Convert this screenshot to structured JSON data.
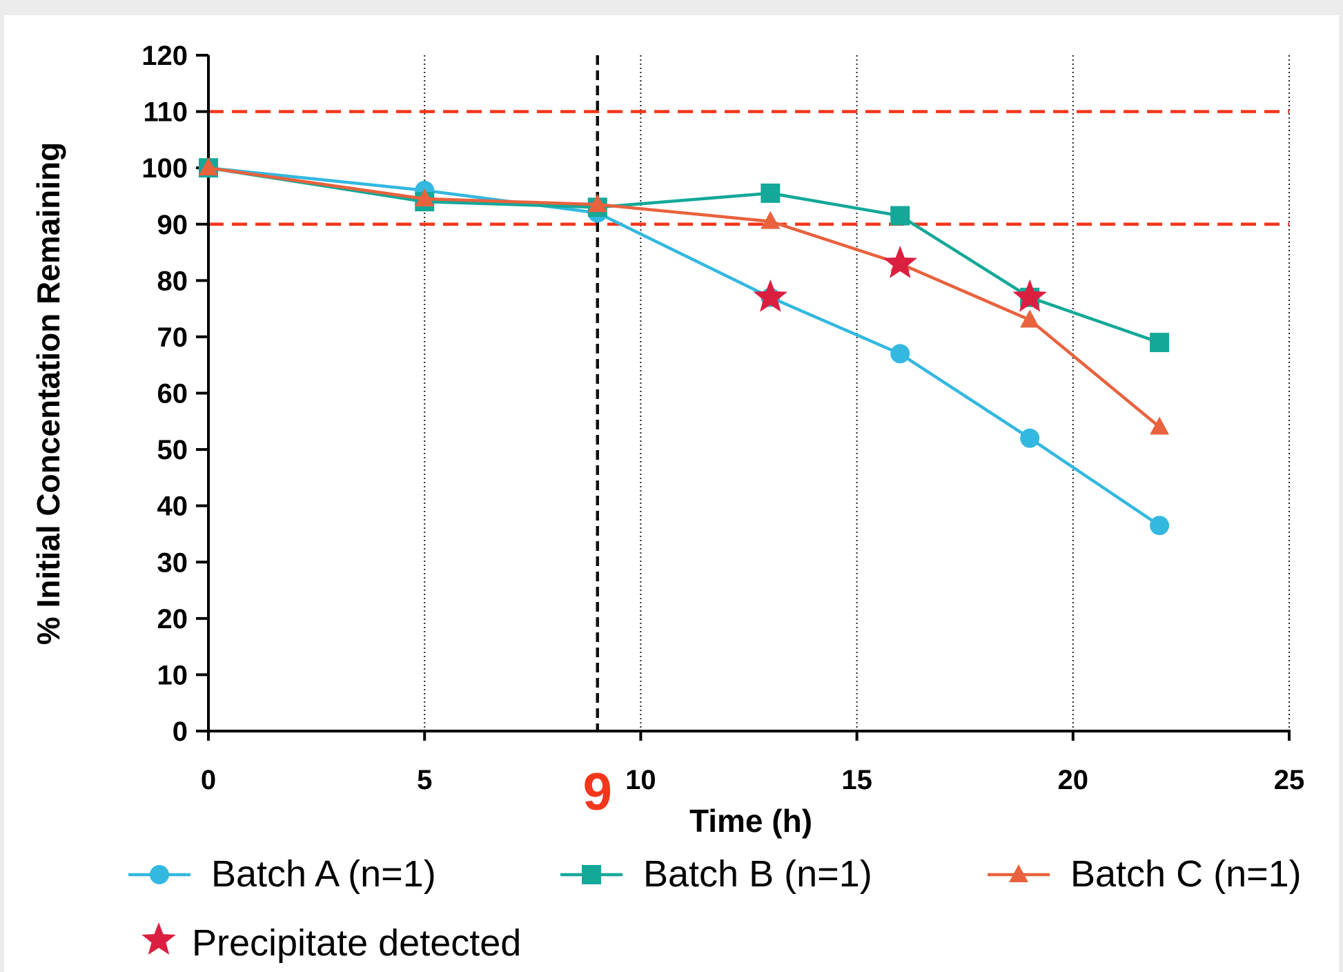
{
  "chart_data": {
    "type": "line",
    "xlabel": "Time (h)",
    "ylabel": "% Initial Concentation Remaining",
    "xlim": [
      0,
      25
    ],
    "ylim": [
      0,
      120
    ],
    "x_ticks": [
      0,
      5,
      10,
      15,
      20,
      25
    ],
    "y_ticks": [
      0,
      10,
      20,
      30,
      40,
      50,
      60,
      70,
      80,
      90,
      100,
      110,
      120
    ],
    "grid": "vertical dotted",
    "reference_lines": [
      {
        "orientation": "horizontal",
        "value": 110,
        "style": "dashed",
        "color": "#f4361b"
      },
      {
        "orientation": "horizontal",
        "value": 90,
        "style": "dashed",
        "color": "#f4361b"
      },
      {
        "orientation": "vertical",
        "value": 9,
        "style": "dashed",
        "color": "#111111"
      }
    ],
    "annotation": {
      "x": 9,
      "text": "9",
      "color": "#f4361b"
    },
    "series": [
      {
        "name": "Batch A (n=1)",
        "marker": "circle",
        "color": "#33b8e0",
        "x": [
          0,
          5,
          9,
          13,
          16,
          19,
          22
        ],
        "y": [
          100,
          96,
          92,
          77,
          67,
          52,
          36.5
        ]
      },
      {
        "name": "Batch B (n=1)",
        "marker": "square",
        "color": "#14a898",
        "x": [
          0,
          5,
          9,
          13,
          16,
          19,
          22
        ],
        "y": [
          100,
          94,
          93,
          95.5,
          91.5,
          77,
          69
        ]
      },
      {
        "name": "Batch C (n=1)",
        "marker": "triangle",
        "color": "#e8623e",
        "x": [
          0,
          5,
          9,
          13,
          16,
          19,
          22
        ],
        "y": [
          100,
          94.5,
          93.5,
          90.5,
          83,
          73,
          54
        ]
      }
    ],
    "precipitate": {
      "name": "Precipitate detected",
      "color": "#db1f40",
      "points": [
        {
          "x": 13,
          "y": 77
        },
        {
          "x": 16,
          "y": 83
        },
        {
          "x": 19,
          "y": 77
        }
      ]
    },
    "legend_position": "bottom"
  }
}
